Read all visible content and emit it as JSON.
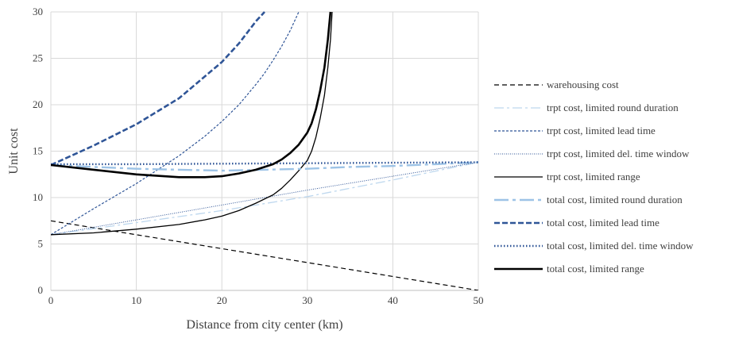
{
  "chart_data": {
    "type": "line",
    "title": "",
    "xlabel": "Distance from city center (km)",
    "ylabel": "Unit cost",
    "xlim": [
      0,
      50
    ],
    "ylim": [
      0,
      30
    ],
    "x_ticks": [
      "0",
      "10",
      "20",
      "30",
      "40",
      "50"
    ],
    "y_ticks": [
      "0",
      "5",
      "10",
      "15",
      "20",
      "25",
      "30"
    ],
    "grid": true,
    "legend_position": "right",
    "series": [
      {
        "name": "warehousing cost",
        "color": "#000000",
        "dash": "6,4",
        "width": 1.2,
        "points": [
          [
            0,
            7.5
          ],
          [
            50,
            0
          ]
        ]
      },
      {
        "name": "trpt cost, limited round duration",
        "color": "#BDD7EE",
        "dash": "12,4,3,4",
        "width": 1.3,
        "points": [
          [
            0,
            6.0
          ],
          [
            10,
            7.3
          ],
          [
            20,
            8.6
          ],
          [
            30,
            10.1
          ],
          [
            40,
            11.9
          ],
          [
            50,
            13.8
          ]
        ]
      },
      {
        "name": "trpt cost, limited lead time",
        "color": "#2F5597",
        "dash": "3,2",
        "width": 1.2,
        "points": [
          [
            0,
            6.0
          ],
          [
            5,
            8.8
          ],
          [
            10,
            11.5
          ],
          [
            12,
            12.7
          ],
          [
            15,
            14.5
          ],
          [
            18,
            16.6
          ],
          [
            20,
            18.2
          ],
          [
            22,
            20.0
          ],
          [
            24,
            22.2
          ],
          [
            25,
            23.4
          ],
          [
            26,
            24.8
          ],
          [
            27,
            26.3
          ],
          [
            28,
            28.0
          ],
          [
            29,
            30.0
          ]
        ]
      },
      {
        "name": "trpt cost, limited del. time window",
        "color": "#2F5597",
        "dash": "1,1.5",
        "width": 1.0,
        "points": [
          [
            0,
            6.0
          ],
          [
            10,
            7.6
          ],
          [
            20,
            9.2
          ],
          [
            30,
            10.8
          ],
          [
            40,
            12.3
          ],
          [
            50,
            13.8
          ]
        ]
      },
      {
        "name": "trpt cost, limited range",
        "color": "#000000",
        "dash": "",
        "width": 1.3,
        "points": [
          [
            0,
            6.0
          ],
          [
            5,
            6.2
          ],
          [
            10,
            6.6
          ],
          [
            15,
            7.1
          ],
          [
            18,
            7.6
          ],
          [
            20,
            8.0
          ],
          [
            22,
            8.6
          ],
          [
            24,
            9.4
          ],
          [
            26,
            10.3
          ],
          [
            27,
            11.0
          ],
          [
            28,
            11.9
          ],
          [
            29,
            12.9
          ],
          [
            30,
            14.0
          ],
          [
            30.5,
            15.0
          ],
          [
            31,
            16.5
          ],
          [
            31.5,
            18.5
          ],
          [
            32,
            21.0
          ],
          [
            32.4,
            24.0
          ],
          [
            32.7,
            27.0
          ],
          [
            32.9,
            30.0
          ]
        ]
      },
      {
        "name": "total cost, limited round duration",
        "color": "#9DC3E6",
        "dash": "18,5,4,5",
        "width": 2.4,
        "points": [
          [
            0,
            13.5
          ],
          [
            5,
            13.3
          ],
          [
            10,
            13.1
          ],
          [
            15,
            13.0
          ],
          [
            20,
            12.9
          ],
          [
            25,
            13.0
          ],
          [
            30,
            13.1
          ],
          [
            35,
            13.3
          ],
          [
            40,
            13.4
          ],
          [
            45,
            13.6
          ],
          [
            50,
            13.8
          ]
        ]
      },
      {
        "name": "total cost, limited lead time",
        "color": "#2F5597",
        "dash": "7,3",
        "width": 2.6,
        "points": [
          [
            0,
            13.5
          ],
          [
            5,
            15.6
          ],
          [
            10,
            17.9
          ],
          [
            15,
            20.7
          ],
          [
            20,
            24.6
          ],
          [
            22,
            26.6
          ],
          [
            24,
            29.0
          ],
          [
            25,
            30.0
          ]
        ]
      },
      {
        "name": "total cost, limited del. time window",
        "color": "#2F5597",
        "dash": "1.5,2.5",
        "width": 2.4,
        "points": [
          [
            0,
            13.6
          ],
          [
            10,
            13.6
          ],
          [
            20,
            13.65
          ],
          [
            30,
            13.7
          ],
          [
            40,
            13.75
          ],
          [
            50,
            13.8
          ]
        ]
      },
      {
        "name": "total cost, limited range",
        "color": "#000000",
        "dash": "",
        "width": 2.6,
        "points": [
          [
            0,
            13.5
          ],
          [
            5,
            13.0
          ],
          [
            10,
            12.5
          ],
          [
            15,
            12.2
          ],
          [
            18,
            12.2
          ],
          [
            20,
            12.3
          ],
          [
            22,
            12.6
          ],
          [
            24,
            13.0
          ],
          [
            26,
            13.6
          ],
          [
            27,
            14.1
          ],
          [
            28,
            14.8
          ],
          [
            29,
            15.7
          ],
          [
            30,
            17.0
          ],
          [
            30.5,
            18.0
          ],
          [
            31,
            19.5
          ],
          [
            31.5,
            21.5
          ],
          [
            32,
            24.0
          ],
          [
            32.4,
            27.0
          ],
          [
            32.6,
            29.0
          ],
          [
            32.7,
            30.0
          ]
        ]
      }
    ]
  }
}
